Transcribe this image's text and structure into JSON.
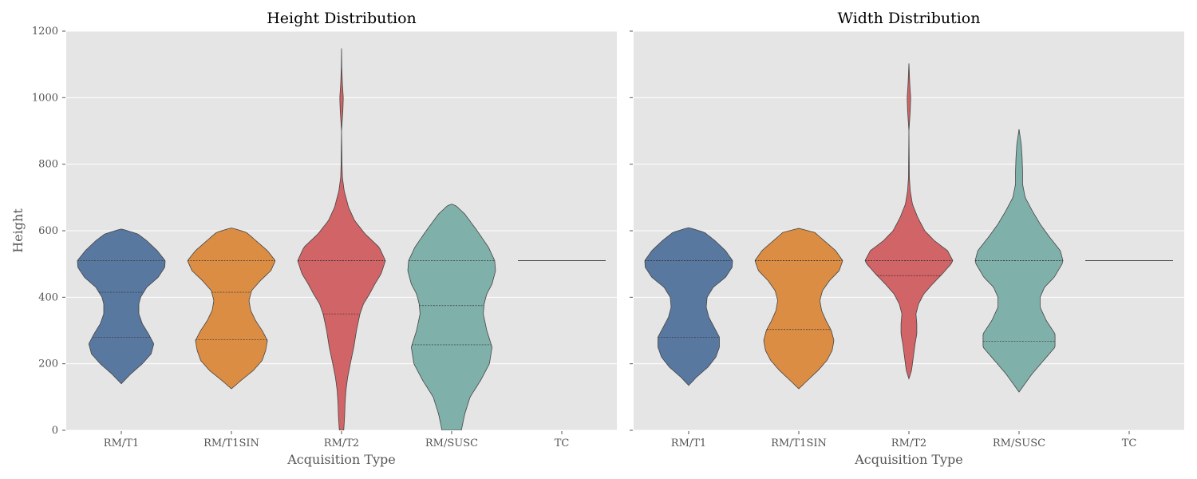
{
  "chart_data": [
    {
      "type": "violin",
      "title": "Height Distribution",
      "xlabel": "Acquisition Type",
      "ylabel": "Height",
      "ylim": [
        0,
        1200
      ],
      "yticks": [
        0,
        200,
        400,
        600,
        800,
        1000,
        1200
      ],
      "categories": [
        "RM/T1",
        "RM/T1SIN",
        "RM/T2",
        "RM/SUSC",
        "TC"
      ],
      "grid": true,
      "violins": [
        {
          "category": "RM/T1",
          "color": "#5878a0",
          "profile": [
            [
              140,
              0.0
            ],
            [
              170,
              0.22
            ],
            [
              200,
              0.48
            ],
            [
              230,
              0.68
            ],
            [
              260,
              0.74
            ],
            [
              290,
              0.62
            ],
            [
              320,
              0.48
            ],
            [
              350,
              0.4
            ],
            [
              380,
              0.4
            ],
            [
              400,
              0.44
            ],
            [
              430,
              0.58
            ],
            [
              460,
              0.84
            ],
            [
              490,
              0.99
            ],
            [
              510,
              1.0
            ],
            [
              540,
              0.82
            ],
            [
              570,
              0.58
            ],
            [
              590,
              0.38
            ],
            [
              603,
              0.07
            ],
            [
              605,
              0.0
            ]
          ],
          "quartiles": [
            280,
            415,
            510
          ]
        },
        {
          "category": "RM/T1SIN",
          "color": "#dc8d44",
          "profile": [
            [
              125,
              0.0
            ],
            [
              150,
              0.22
            ],
            [
              180,
              0.5
            ],
            [
              210,
              0.7
            ],
            [
              240,
              0.78
            ],
            [
              270,
              0.82
            ],
            [
              300,
              0.7
            ],
            [
              330,
              0.55
            ],
            [
              360,
              0.44
            ],
            [
              390,
              0.4
            ],
            [
              420,
              0.46
            ],
            [
              450,
              0.66
            ],
            [
              480,
              0.9
            ],
            [
              510,
              1.0
            ],
            [
              540,
              0.82
            ],
            [
              570,
              0.56
            ],
            [
              595,
              0.34
            ],
            [
              606,
              0.07
            ],
            [
              608,
              0.0
            ]
          ],
          "quartiles": [
            272,
            415,
            510
          ]
        },
        {
          "category": "RM/T2",
          "color": "#d16466",
          "profile": [
            [
              0,
              0.05
            ],
            [
              40,
              0.07
            ],
            [
              80,
              0.08
            ],
            [
              120,
              0.1
            ],
            [
              160,
              0.14
            ],
            [
              200,
              0.2
            ],
            [
              250,
              0.28
            ],
            [
              300,
              0.34
            ],
            [
              350,
              0.42
            ],
            [
              380,
              0.5
            ],
            [
              410,
              0.64
            ],
            [
              440,
              0.76
            ],
            [
              470,
              0.9
            ],
            [
              510,
              1.0
            ],
            [
              550,
              0.86
            ],
            [
              590,
              0.54
            ],
            [
              630,
              0.3
            ],
            [
              670,
              0.16
            ],
            [
              720,
              0.06
            ],
            [
              760,
              0.02
            ],
            [
              800,
              0.01
            ],
            [
              900,
              0.0
            ],
            [
              960,
              0.03
            ],
            [
              1000,
              0.04
            ],
            [
              1040,
              0.02
            ],
            [
              1090,
              0.005
            ],
            [
              1148,
              0.0
            ]
          ],
          "quartiles": [
            350,
            510,
            510
          ]
        },
        {
          "category": "RM/SUSC",
          "color": "#80b0aa",
          "profile": [
            [
              0,
              0.22
            ],
            [
              50,
              0.3
            ],
            [
              100,
              0.42
            ],
            [
              150,
              0.66
            ],
            [
              200,
              0.86
            ],
            [
              250,
              0.92
            ],
            [
              300,
              0.8
            ],
            [
              350,
              0.72
            ],
            [
              380,
              0.74
            ],
            [
              410,
              0.8
            ],
            [
              440,
              0.92
            ],
            [
              480,
              1.0
            ],
            [
              510,
              0.98
            ],
            [
              550,
              0.84
            ],
            [
              600,
              0.58
            ],
            [
              650,
              0.3
            ],
            [
              675,
              0.1
            ],
            [
              680,
              0.0
            ]
          ],
          "quartiles": [
            257,
            375,
            510
          ]
        },
        {
          "category": "TC",
          "color": "#7fb3aa",
          "profile": [
            [
              509,
              1.0
            ],
            [
              511,
              1.0
            ]
          ],
          "quartiles": []
        }
      ]
    },
    {
      "type": "violin",
      "title": "Width Distribution",
      "xlabel": "Acquisition Type",
      "ylabel": "",
      "ylim": [
        0,
        1200
      ],
      "yticks": [
        0,
        200,
        400,
        600,
        800,
        1000,
        1200
      ],
      "categories": [
        "RM/T1",
        "RM/T1SIN",
        "RM/T2",
        "RM/SUSC",
        "TC"
      ],
      "grid": true,
      "violins": [
        {
          "category": "RM/T1",
          "color": "#5878a0",
          "profile": [
            [
              135,
              0.0
            ],
            [
              160,
              0.18
            ],
            [
              190,
              0.44
            ],
            [
              220,
              0.62
            ],
            [
              250,
              0.7
            ],
            [
              280,
              0.7
            ],
            [
              310,
              0.58
            ],
            [
              340,
              0.46
            ],
            [
              370,
              0.4
            ],
            [
              400,
              0.42
            ],
            [
              430,
              0.56
            ],
            [
              460,
              0.84
            ],
            [
              490,
              0.99
            ],
            [
              510,
              1.0
            ],
            [
              540,
              0.84
            ],
            [
              570,
              0.6
            ],
            [
              595,
              0.36
            ],
            [
              607,
              0.07
            ],
            [
              609,
              0.0
            ]
          ],
          "quartiles": [
            280,
            510,
            510
          ]
        },
        {
          "category": "RM/T1SIN",
          "color": "#dc8d44",
          "profile": [
            [
              125,
              0.0
            ],
            [
              150,
              0.2
            ],
            [
              180,
              0.44
            ],
            [
              210,
              0.64
            ],
            [
              240,
              0.76
            ],
            [
              270,
              0.8
            ],
            [
              300,
              0.74
            ],
            [
              330,
              0.62
            ],
            [
              360,
              0.52
            ],
            [
              390,
              0.48
            ],
            [
              420,
              0.54
            ],
            [
              450,
              0.7
            ],
            [
              480,
              0.92
            ],
            [
              510,
              1.0
            ],
            [
              540,
              0.84
            ],
            [
              570,
              0.58
            ],
            [
              595,
              0.36
            ],
            [
              605,
              0.07
            ],
            [
              607,
              0.0
            ]
          ],
          "quartiles": [
            303,
            510,
            510
          ]
        },
        {
          "category": "RM/T2",
          "color": "#d16466",
          "profile": [
            [
              155,
              0.0
            ],
            [
              180,
              0.06
            ],
            [
              220,
              0.1
            ],
            [
              260,
              0.14
            ],
            [
              290,
              0.18
            ],
            [
              320,
              0.18
            ],
            [
              350,
              0.16
            ],
            [
              380,
              0.22
            ],
            [
              410,
              0.34
            ],
            [
              440,
              0.54
            ],
            [
              470,
              0.76
            ],
            [
              500,
              0.96
            ],
            [
              510,
              1.0
            ],
            [
              540,
              0.88
            ],
            [
              570,
              0.58
            ],
            [
              600,
              0.36
            ],
            [
              640,
              0.2
            ],
            [
              680,
              0.08
            ],
            [
              720,
              0.03
            ],
            [
              760,
              0.01
            ],
            [
              900,
              0.0
            ],
            [
              960,
              0.03
            ],
            [
              1000,
              0.04
            ],
            [
              1040,
              0.02
            ],
            [
              1103,
              0.0
            ]
          ],
          "quartiles": [
            465,
            510,
            510
          ]
        },
        {
          "category": "RM/SUSC",
          "color": "#80b0aa",
          "profile": [
            [
              115,
              0.0
            ],
            [
              130,
              0.08
            ],
            [
              170,
              0.3
            ],
            [
              210,
              0.56
            ],
            [
              250,
              0.82
            ],
            [
              290,
              0.82
            ],
            [
              330,
              0.62
            ],
            [
              370,
              0.48
            ],
            [
              400,
              0.48
            ],
            [
              430,
              0.58
            ],
            [
              460,
              0.8
            ],
            [
              500,
              0.98
            ],
            [
              510,
              1.0
            ],
            [
              540,
              0.94
            ],
            [
              580,
              0.7
            ],
            [
              620,
              0.48
            ],
            [
              660,
              0.3
            ],
            [
              700,
              0.14
            ],
            [
              740,
              0.08
            ],
            [
              780,
              0.08
            ],
            [
              820,
              0.07
            ],
            [
              860,
              0.05
            ],
            [
              905,
              0.0
            ]
          ],
          "quartiles": [
            268,
            510,
            510
          ]
        },
        {
          "category": "TC",
          "color": "#7fb3aa",
          "profile": [
            [
              509,
              1.0
            ],
            [
              511,
              1.0
            ]
          ],
          "quartiles": []
        }
      ]
    }
  ]
}
